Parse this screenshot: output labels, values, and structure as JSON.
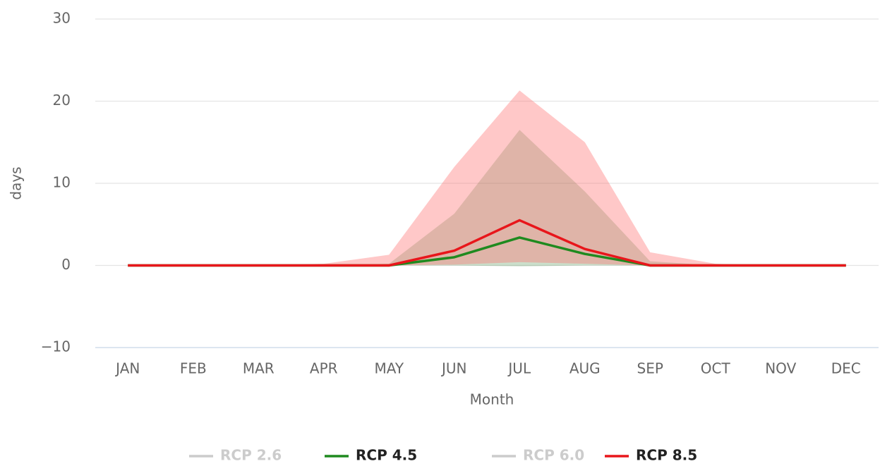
{
  "chart_data": {
    "type": "line",
    "y_label": "days",
    "x_label": "Month",
    "categories": [
      "JAN",
      "FEB",
      "MAR",
      "APR",
      "MAY",
      "JUN",
      "JUL",
      "AUG",
      "SEP",
      "OCT",
      "NOV",
      "DEC"
    ],
    "ylim": [
      -10,
      30
    ],
    "yticks": [
      {
        "value": -10,
        "label": "−10"
      },
      0,
      10,
      20,
      30
    ],
    "grid": true,
    "legend": "bottom",
    "series": [
      {
        "name": "RCP 2.6",
        "color": "#cccccc",
        "visible": false
      },
      {
        "name": "RCP 4.5",
        "color": "#1f8a1f",
        "range_color": "rgba(20,110,20,0.22)",
        "visible": true,
        "values": [
          0,
          0,
          0,
          0,
          0,
          1.0,
          3.4,
          1.4,
          0,
          0,
          0,
          0
        ],
        "range_low": [
          0,
          0,
          0,
          0,
          0,
          0,
          -0.1,
          0,
          0,
          0,
          0,
          0
        ],
        "range_high": [
          0,
          0,
          0,
          0,
          0.2,
          6.3,
          16.5,
          9.0,
          0.5,
          0,
          0,
          0
        ]
      },
      {
        "name": "RCP 6.0",
        "color": "#cccccc",
        "visible": false
      },
      {
        "name": "RCP 8.5",
        "color": "#e8161b",
        "range_color": "rgba(255,110,110,0.38)",
        "visible": true,
        "values": [
          0,
          0,
          0,
          0,
          0,
          1.8,
          5.5,
          2.0,
          0,
          0,
          0,
          0
        ],
        "range_low": [
          0,
          0,
          0,
          0,
          0,
          0.1,
          0.4,
          0.2,
          0,
          0,
          0,
          0
        ],
        "range_high": [
          0,
          0,
          0,
          0.2,
          1.3,
          12.0,
          21.3,
          15.0,
          1.6,
          0.2,
          0,
          0
        ]
      }
    ]
  }
}
